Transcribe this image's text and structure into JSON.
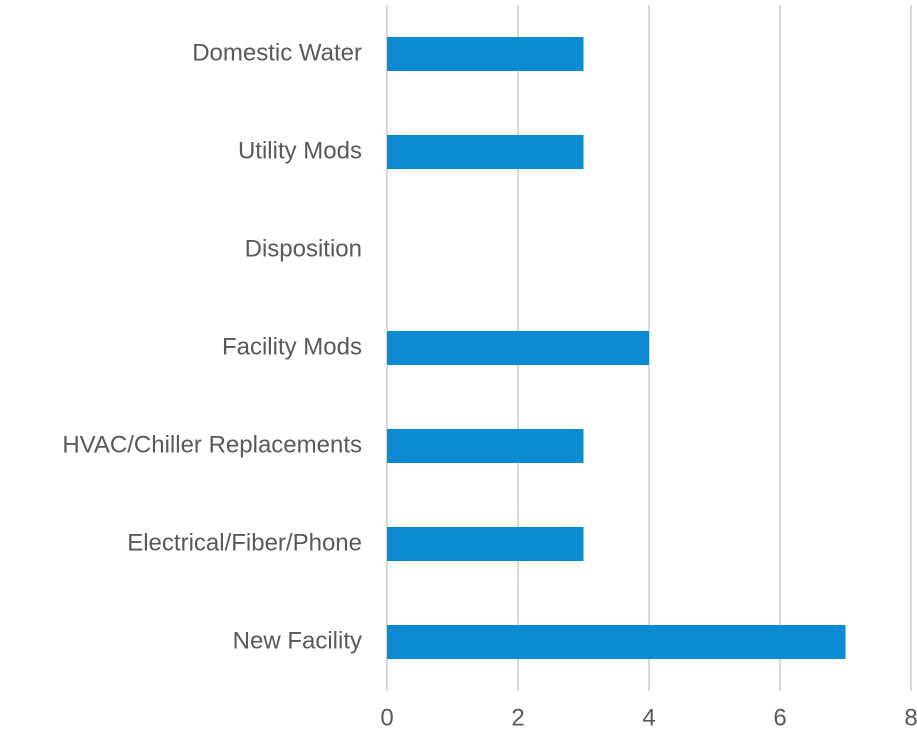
{
  "chart_data": {
    "type": "bar",
    "orientation": "horizontal",
    "categories": [
      "Domestic Water",
      "Utility Mods",
      "Disposition",
      "Facility Mods",
      "HVAC/Chiller Replacements",
      "Electrical/Fiber/Phone",
      "New Facility"
    ],
    "values": [
      3,
      3,
      0,
      4,
      3,
      3,
      7
    ],
    "color": "#0a8acf",
    "xlim": [
      0,
      8
    ],
    "xticks": [
      0,
      2,
      4,
      6,
      8
    ],
    "grid": true
  }
}
